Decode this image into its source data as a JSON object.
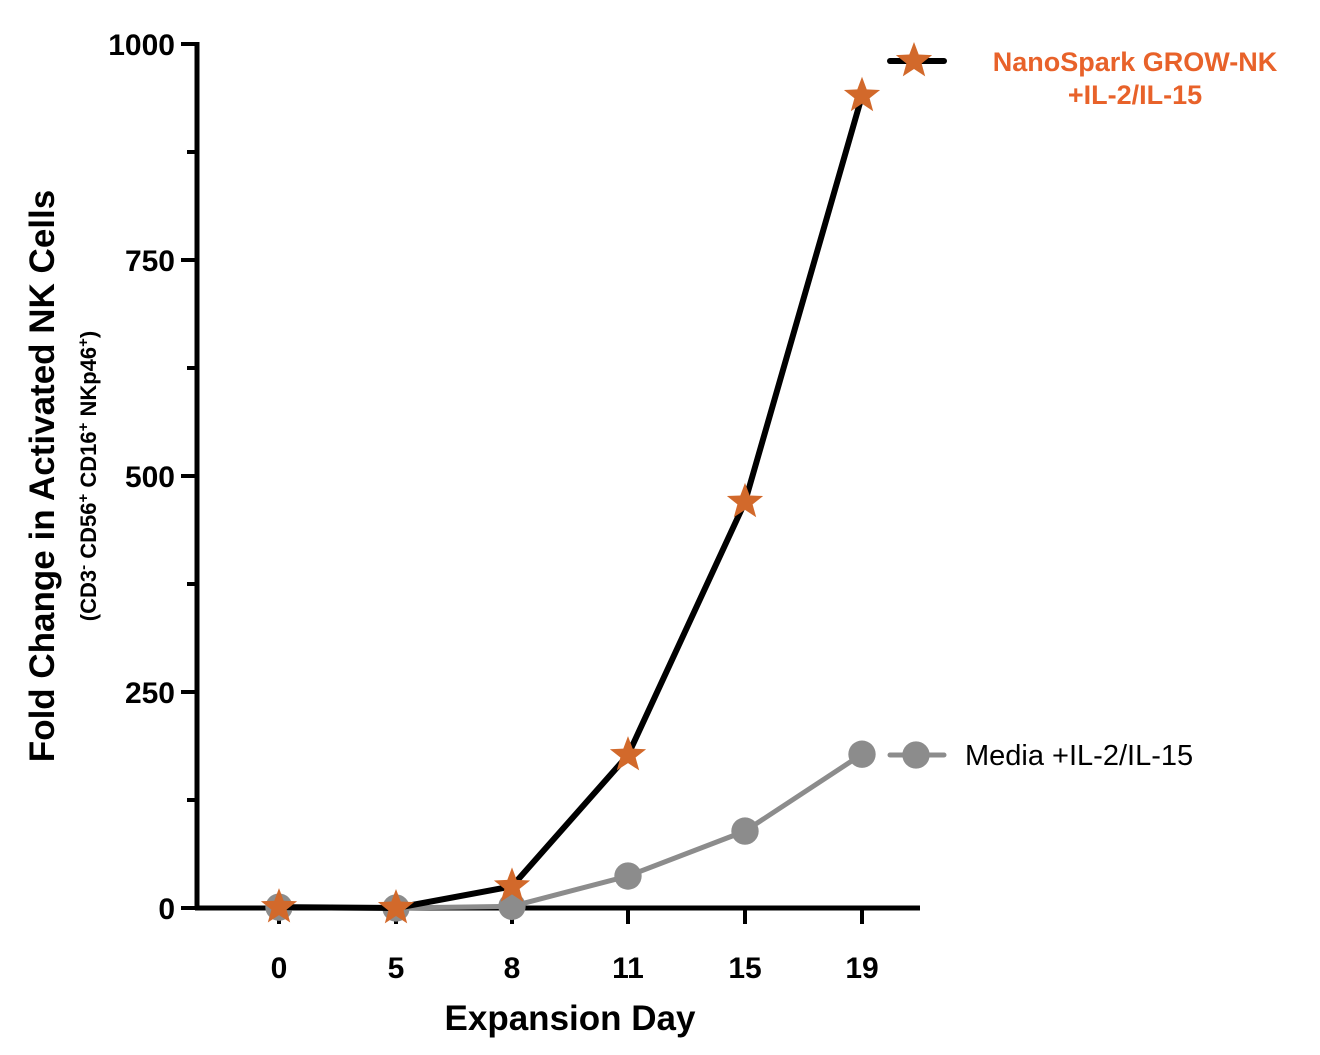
{
  "chart_data": {
    "type": "line",
    "title": "",
    "xlabel": "Expansion Day",
    "ylabel": "Fold Change in Activated NK Cells",
    "ylabel_sub_parts": [
      {
        "t": "(CD3",
        "sup": false
      },
      {
        "t": "-",
        "sup": true
      },
      {
        "t": " CD56",
        "sup": false
      },
      {
        "t": "+",
        "sup": true
      },
      {
        "t": " CD16",
        "sup": false
      },
      {
        "t": "+",
        "sup": true
      },
      {
        "t": " NKp46",
        "sup": false
      },
      {
        "t": "+",
        "sup": true
      },
      {
        "t": ")",
        "sup": false
      }
    ],
    "categories": [
      "0",
      "5",
      "8",
      "11",
      "15",
      "19"
    ],
    "ylim": [
      0,
      1000
    ],
    "yticks": [
      0,
      250,
      500,
      750,
      1000
    ],
    "yticks_labeled": [
      0,
      250,
      500,
      750,
      1000
    ],
    "yticks_minor": [
      125,
      375,
      625,
      875
    ],
    "grid": false,
    "series": [
      {
        "name": "NanoSpark GROW-NK +IL-2/IL-15",
        "legend_lines": [
          "NanoSpark GROW-NK",
          "+IL-2/IL-15"
        ],
        "values": [
          1,
          0,
          25,
          177,
          470,
          940
        ],
        "line_color": "#000000",
        "marker": "star",
        "marker_color": "#d2692b",
        "label_color": "#e8622a"
      },
      {
        "name": "Media +IL-2/IL-15",
        "legend_lines": [
          "Media +IL-2/IL-15"
        ],
        "values": [
          1,
          0,
          2,
          37,
          89,
          178
        ],
        "line_color": "#8c8c8c",
        "marker": "circle",
        "marker_color": "#8c8c8c",
        "label_color": "#000000"
      }
    ]
  }
}
